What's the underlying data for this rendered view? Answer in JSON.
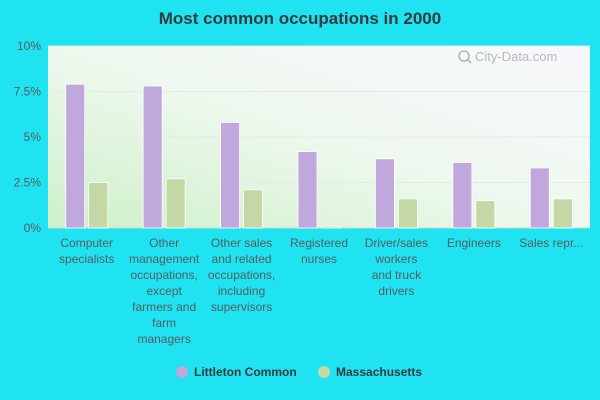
{
  "title": "Most common occupations in 2000",
  "watermark": "City-Data.com",
  "chart_data": {
    "type": "bar",
    "title": "Most common occupations in 2000",
    "categories": [
      [
        "Computer",
        "specialists"
      ],
      [
        "Other",
        "management",
        "occupations,",
        "except",
        "farmers and",
        "farm",
        "managers"
      ],
      [
        "Other sales",
        "and related",
        "occupations,",
        "including",
        "supervisors"
      ],
      [
        "Registered",
        "nurses"
      ],
      [
        "Driver/sales",
        "workers",
        "and truck",
        "drivers"
      ],
      [
        "Engineers"
      ],
      [
        "Sales repr..."
      ]
    ],
    "series": [
      {
        "name": "Littleton Common",
        "color": "#c0a8dc",
        "values": [
          7.9,
          7.8,
          5.8,
          4.2,
          3.8,
          3.6,
          3.3
        ]
      },
      {
        "name": "Massachusetts",
        "color": "#c4d8a6",
        "values": [
          2.5,
          2.7,
          2.1,
          0.1,
          1.6,
          1.5,
          1.6
        ]
      }
    ],
    "yticks": [
      "0%",
      "2.5%",
      "5%",
      "7.5%",
      "10%"
    ],
    "ytick_values": [
      0,
      2.5,
      5,
      7.5,
      10
    ],
    "ylim": [
      0,
      10
    ],
    "xlabel": "",
    "ylabel": "",
    "grid": true,
    "legend_position": "bottom"
  }
}
